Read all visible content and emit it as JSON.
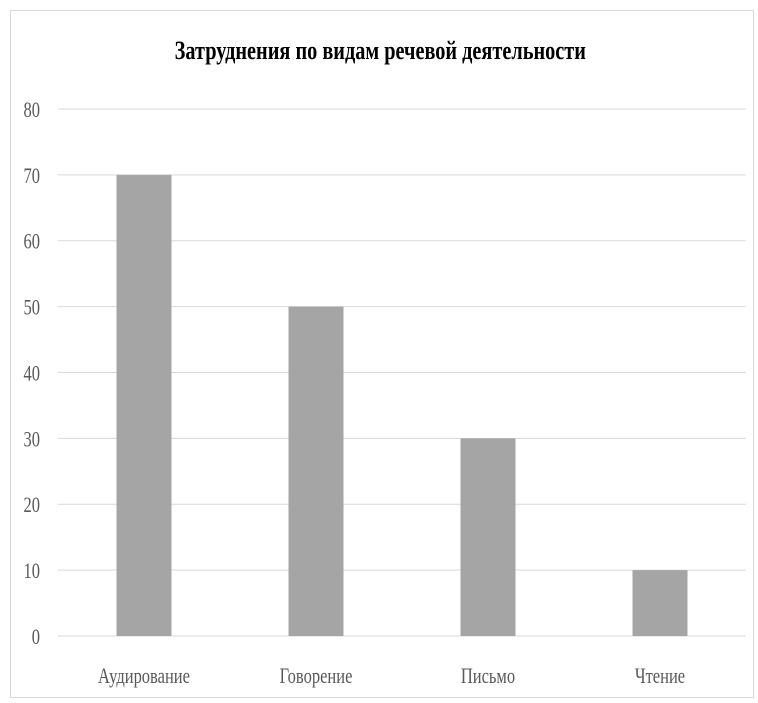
{
  "chart_data": {
    "type": "bar",
    "title": "Затруднения по видам речевой деятельности",
    "categories": [
      "Аудирование",
      "Говорение",
      "Письмо",
      "Чтение"
    ],
    "values": [
      70,
      50,
      30,
      10
    ],
    "xlabel": "",
    "ylabel": "",
    "ylim": [
      0,
      80
    ],
    "yticks": [
      0,
      10,
      20,
      30,
      40,
      50,
      60,
      70,
      80
    ],
    "grid": true,
    "legend": "none",
    "colors": {
      "bar": "#a5a5a5",
      "gridline": "#d9d9d9",
      "axis_text": "#595959"
    }
  }
}
